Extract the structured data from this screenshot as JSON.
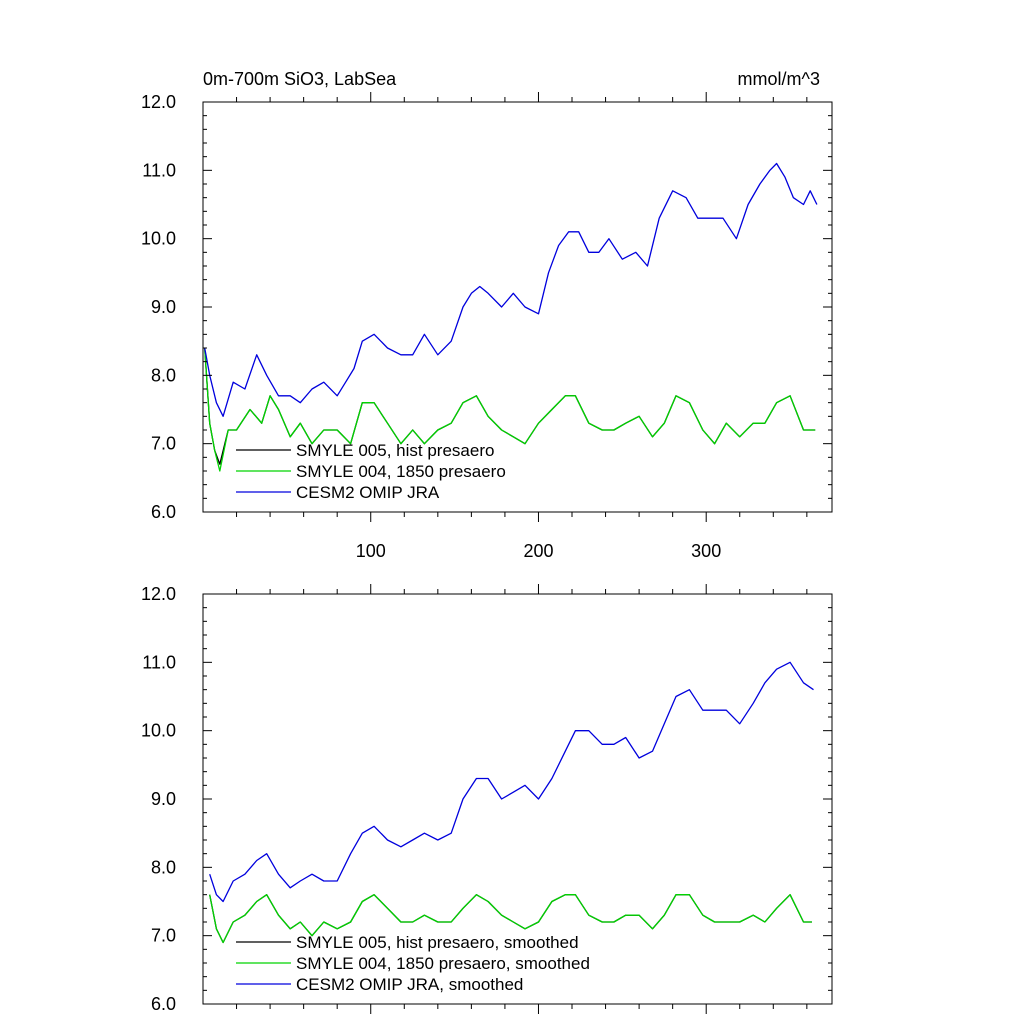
{
  "chart_data": [
    {
      "type": "line",
      "title": "0m-700m SiO3, LabSea",
      "units": "mmol/m^3",
      "xlabel": "",
      "ylabel": "",
      "xlim": [
        0,
        375
      ],
      "ylim": [
        6.0,
        12.0
      ],
      "x_ticks": [
        100,
        200,
        300
      ],
      "x_tick_labels": [
        "100",
        "200",
        "300"
      ],
      "y_ticks": [
        6.0,
        7.0,
        8.0,
        9.0,
        10.0,
        11.0,
        12.0
      ],
      "y_tick_labels": [
        "6.0",
        "7.0",
        "8.0",
        "9.0",
        "10.0",
        "11.0",
        "12.0"
      ],
      "grid": false,
      "legend_position": "bottom-left",
      "series": [
        {
          "name": "SMYLE 005, hist presaero",
          "color": "#000000",
          "x": [
            1,
            4,
            7,
            10,
            15,
            20,
            28,
            35,
            40,
            45,
            52,
            58,
            65,
            72,
            80,
            88,
            95,
            102,
            110,
            118,
            125,
            132,
            140,
            148,
            155,
            163,
            170,
            178,
            185,
            192,
            200,
            208,
            216,
            222,
            230,
            238,
            245,
            252,
            260,
            268,
            275,
            282,
            290,
            298,
            305,
            312,
            320,
            328,
            335,
            342,
            350,
            358,
            365
          ],
          "y": [
            8.4,
            7.3,
            6.9,
            6.7,
            7.2,
            7.2,
            7.5,
            7.3,
            7.7,
            7.5,
            7.1,
            7.3,
            7.0,
            7.2,
            7.2,
            7.0,
            7.6,
            7.6,
            7.3,
            7.0,
            7.2,
            7.0,
            7.2,
            7.3,
            7.6,
            7.7,
            7.4,
            7.2,
            7.1,
            7.0,
            7.3,
            7.5,
            7.7,
            7.7,
            7.3,
            7.2,
            7.2,
            7.3,
            7.4,
            7.1,
            7.3,
            7.7,
            7.6,
            7.2,
            7.0,
            7.3,
            7.1,
            7.3,
            7.3,
            7.6,
            7.7,
            7.2,
            7.2
          ]
        },
        {
          "name": "SMYLE 004, 1850 presaero",
          "color": "#00d400",
          "x": [
            1,
            4,
            7,
            10,
            15,
            20,
            28,
            35,
            40,
            45,
            52,
            58,
            65,
            72,
            80,
            88,
            95,
            102,
            110,
            118,
            125,
            132,
            140,
            148,
            155,
            163,
            170,
            178,
            185,
            192,
            200,
            208,
            216,
            222,
            230,
            238,
            245,
            252,
            260,
            268,
            275,
            282,
            290,
            298,
            305,
            312,
            320,
            328,
            335,
            342,
            350,
            358,
            365
          ],
          "y": [
            8.4,
            7.3,
            6.9,
            6.6,
            7.2,
            7.2,
            7.5,
            7.3,
            7.7,
            7.5,
            7.1,
            7.3,
            7.0,
            7.2,
            7.2,
            7.0,
            7.6,
            7.6,
            7.3,
            7.0,
            7.2,
            7.0,
            7.2,
            7.3,
            7.6,
            7.7,
            7.4,
            7.2,
            7.1,
            7.0,
            7.3,
            7.5,
            7.7,
            7.7,
            7.3,
            7.2,
            7.2,
            7.3,
            7.4,
            7.1,
            7.3,
            7.7,
            7.6,
            7.2,
            7.0,
            7.3,
            7.1,
            7.3,
            7.3,
            7.6,
            7.7,
            7.2,
            7.2
          ]
        },
        {
          "name": "CESM2 OMIP JRA",
          "color": "#0000dd",
          "x": [
            1,
            4,
            8,
            12,
            18,
            25,
            32,
            38,
            45,
            52,
            58,
            65,
            72,
            80,
            85,
            90,
            95,
            102,
            110,
            118,
            125,
            132,
            140,
            148,
            155,
            160,
            165,
            170,
            178,
            185,
            192,
            200,
            206,
            212,
            218,
            224,
            230,
            236,
            242,
            250,
            258,
            265,
            272,
            280,
            288,
            295,
            302,
            310,
            318,
            325,
            332,
            338,
            342,
            347,
            352,
            358,
            362,
            366
          ],
          "y": [
            8.4,
            8.0,
            7.6,
            7.4,
            7.9,
            7.8,
            8.3,
            8.0,
            7.7,
            7.7,
            7.6,
            7.8,
            7.9,
            7.7,
            7.9,
            8.1,
            8.5,
            8.6,
            8.4,
            8.3,
            8.3,
            8.6,
            8.3,
            8.5,
            9.0,
            9.2,
            9.3,
            9.2,
            9.0,
            9.2,
            9.0,
            8.9,
            9.5,
            9.9,
            10.1,
            10.1,
            9.8,
            9.8,
            10.0,
            9.7,
            9.8,
            9.6,
            10.3,
            10.7,
            10.6,
            10.3,
            10.3,
            10.3,
            10.0,
            10.5,
            10.8,
            11.0,
            11.1,
            10.9,
            10.6,
            10.5,
            10.7,
            10.5
          ]
        }
      ]
    },
    {
      "type": "line",
      "title": "",
      "xlim": [
        0,
        375
      ],
      "ylim": [
        6.0,
        12.0
      ],
      "x_ticks": [
        100,
        200,
        300
      ],
      "y_ticks": [
        6.0,
        7.0,
        8.0,
        9.0,
        10.0,
        11.0,
        12.0
      ],
      "y_tick_labels": [
        "6.0",
        "7.0",
        "8.0",
        "9.0",
        "10.0",
        "11.0",
        "12.0"
      ],
      "grid": false,
      "legend_position": "bottom-left",
      "series": [
        {
          "name": "SMYLE 005, hist presaero, smoothed",
          "color": "#000000",
          "x": [
            4,
            8,
            12,
            18,
            25,
            32,
            38,
            45,
            52,
            58,
            65,
            72,
            80,
            88,
            95,
            102,
            110,
            118,
            125,
            132,
            140,
            148,
            155,
            163,
            170,
            178,
            185,
            192,
            200,
            208,
            216,
            222,
            230,
            238,
            245,
            252,
            260,
            268,
            275,
            282,
            290,
            298,
            305,
            312,
            320,
            328,
            335,
            342,
            350,
            358,
            363
          ],
          "y": [
            7.6,
            7.1,
            6.9,
            7.2,
            7.3,
            7.5,
            7.6,
            7.3,
            7.1,
            7.2,
            7.0,
            7.2,
            7.1,
            7.2,
            7.5,
            7.6,
            7.4,
            7.2,
            7.2,
            7.3,
            7.2,
            7.2,
            7.4,
            7.6,
            7.5,
            7.3,
            7.2,
            7.1,
            7.2,
            7.5,
            7.6,
            7.6,
            7.3,
            7.2,
            7.2,
            7.3,
            7.3,
            7.1,
            7.3,
            7.6,
            7.6,
            7.3,
            7.2,
            7.2,
            7.2,
            7.3,
            7.2,
            7.4,
            7.6,
            7.2,
            7.2
          ]
        },
        {
          "name": "SMYLE 004, 1850 presaero, smoothed",
          "color": "#00d400",
          "x": [
            4,
            8,
            12,
            18,
            25,
            32,
            38,
            45,
            52,
            58,
            65,
            72,
            80,
            88,
            95,
            102,
            110,
            118,
            125,
            132,
            140,
            148,
            155,
            163,
            170,
            178,
            185,
            192,
            200,
            208,
            216,
            222,
            230,
            238,
            245,
            252,
            260,
            268,
            275,
            282,
            290,
            298,
            305,
            312,
            320,
            328,
            335,
            342,
            350,
            358,
            363
          ],
          "y": [
            7.6,
            7.1,
            6.9,
            7.2,
            7.3,
            7.5,
            7.6,
            7.3,
            7.1,
            7.2,
            7.0,
            7.2,
            7.1,
            7.2,
            7.5,
            7.6,
            7.4,
            7.2,
            7.2,
            7.3,
            7.2,
            7.2,
            7.4,
            7.6,
            7.5,
            7.3,
            7.2,
            7.1,
            7.2,
            7.5,
            7.6,
            7.6,
            7.3,
            7.2,
            7.2,
            7.3,
            7.3,
            7.1,
            7.3,
            7.6,
            7.6,
            7.3,
            7.2,
            7.2,
            7.2,
            7.3,
            7.2,
            7.4,
            7.6,
            7.2,
            7.2
          ]
        },
        {
          "name": "CESM2 OMIP JRA, smoothed",
          "color": "#0000dd",
          "x": [
            4,
            8,
            12,
            18,
            25,
            32,
            38,
            45,
            52,
            58,
            65,
            72,
            80,
            88,
            95,
            102,
            110,
            118,
            125,
            132,
            140,
            148,
            155,
            163,
            170,
            178,
            185,
            192,
            200,
            208,
            216,
            222,
            230,
            238,
            245,
            252,
            260,
            268,
            275,
            282,
            290,
            298,
            305,
            312,
            320,
            328,
            335,
            342,
            350,
            358,
            364
          ],
          "y": [
            7.9,
            7.6,
            7.5,
            7.8,
            7.9,
            8.1,
            8.2,
            7.9,
            7.7,
            7.8,
            7.9,
            7.8,
            7.8,
            8.2,
            8.5,
            8.6,
            8.4,
            8.3,
            8.4,
            8.5,
            8.4,
            8.5,
            9.0,
            9.3,
            9.3,
            9.0,
            9.1,
            9.2,
            9.0,
            9.3,
            9.7,
            10.0,
            10.0,
            9.8,
            9.8,
            9.9,
            9.6,
            9.7,
            10.1,
            10.5,
            10.6,
            10.3,
            10.3,
            10.3,
            10.1,
            10.4,
            10.7,
            10.9,
            11.0,
            10.7,
            10.6
          ]
        }
      ]
    }
  ]
}
